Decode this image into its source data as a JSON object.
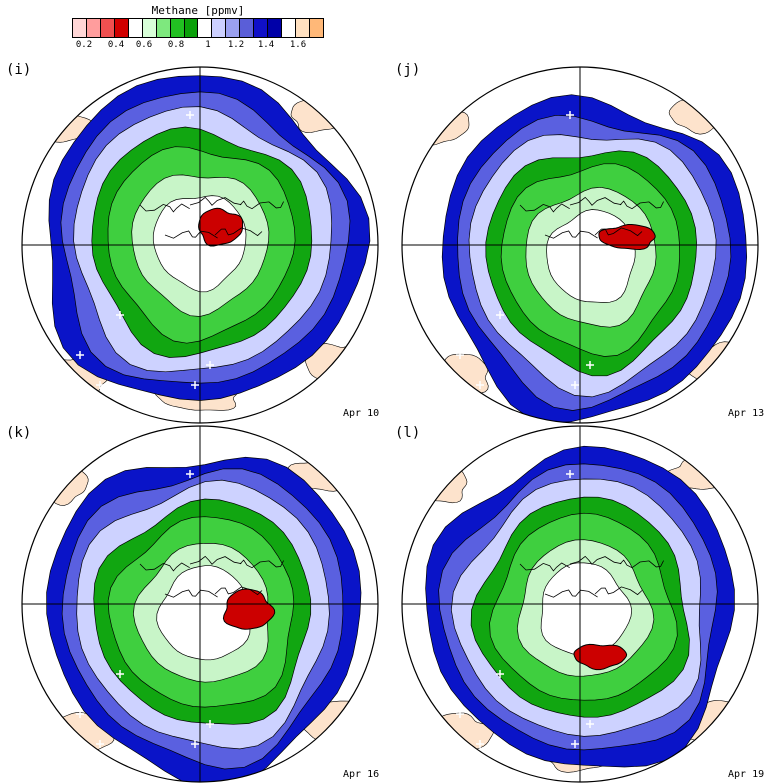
{
  "colorbar": {
    "title": "Methane [ppmv]",
    "colors": [
      "#ffd6d6",
      "#ff9d9d",
      "#f05050",
      "#d10000",
      "#ffffff",
      "#d8ffd8",
      "#7ee87e",
      "#22c022",
      "#0aa00a",
      "#ffffff",
      "#ccd0ff",
      "#9aa0f0",
      "#5a5ed8",
      "#1010c8",
      "#0000a8",
      "#ffffff",
      "#ffe0c0",
      "#ffb878"
    ],
    "ticks": [
      "0.2",
      "0.4",
      "0.6",
      "0.8",
      "1",
      "1.2",
      "1.4",
      "1.6"
    ]
  },
  "panels": [
    {
      "label": "(i)",
      "date": "Apr 10"
    },
    {
      "label": "(j)",
      "date": "Apr 13"
    },
    {
      "label": "(k)",
      "date": "Apr 16"
    },
    {
      "label": "(l)",
      "date": "Apr 19"
    }
  ],
  "colors": {
    "blue_dark": "#0a14c8",
    "blue_mid": "#5a60e0",
    "blue_light": "#cdd2ff",
    "green_dark": "#11a611",
    "green_mid": "#3fcf3f",
    "green_light": "#c8f5c8",
    "red": "#cc0000",
    "orange_light": "#fde3cc",
    "background": "#ffffff"
  }
}
